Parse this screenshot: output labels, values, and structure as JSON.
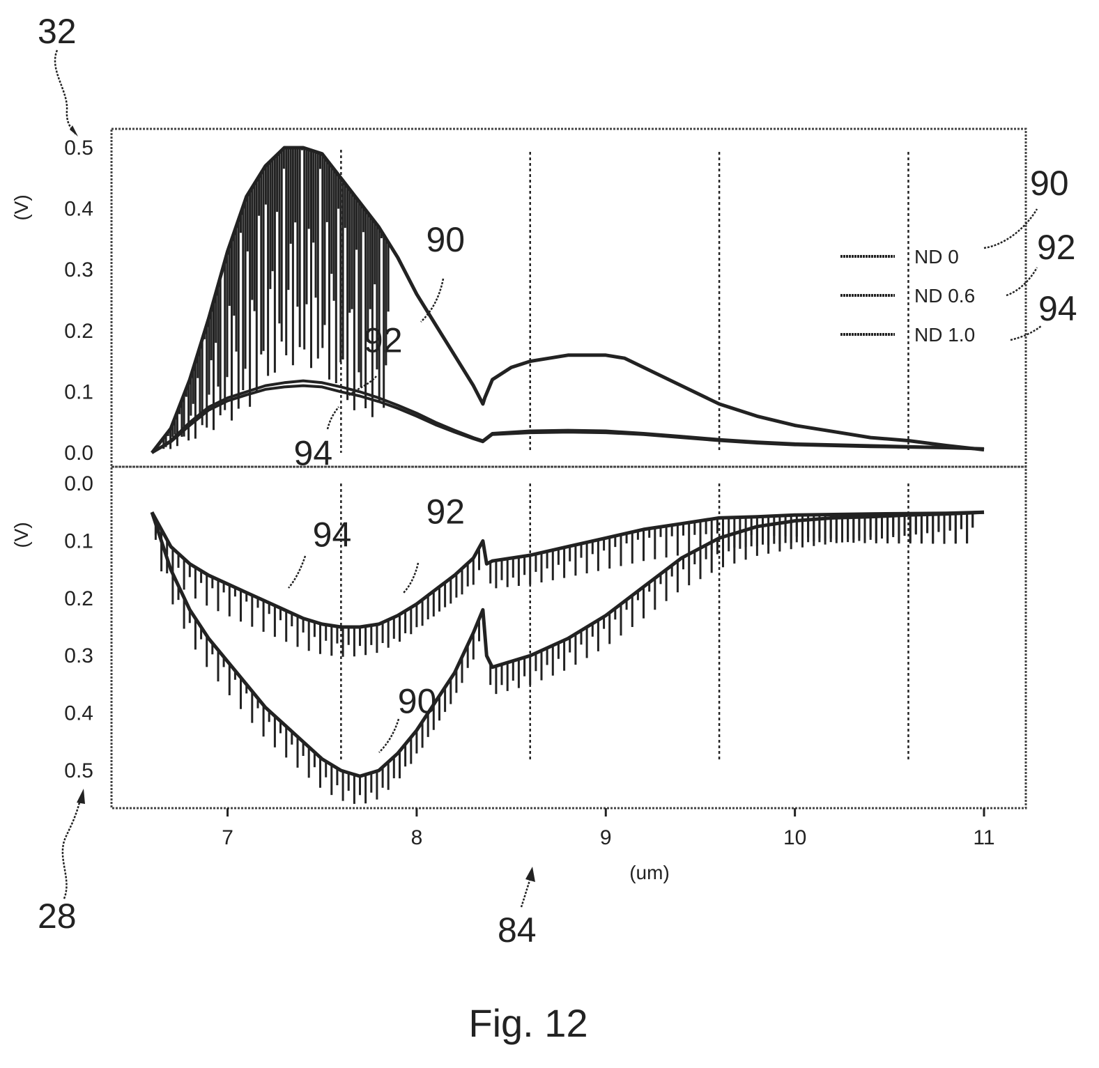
{
  "figure": {
    "caption": "Fig. 12",
    "ref_top_panel": "32",
    "ref_bottom_panel": "28",
    "ref_x_axis": "84"
  },
  "colors": {
    "ink": "#222222",
    "background": "#ffffff"
  },
  "chart_data": [
    {
      "type": "line",
      "panel": "top",
      "xlabel": "(um)",
      "ylabel": "(V)",
      "xlim": [
        6.6,
        11.0
      ],
      "ylim": [
        0.0,
        0.5
      ],
      "grid": false,
      "vertical_dashed_lines": [
        7.6,
        8.6,
        9.6,
        10.6
      ],
      "x_ticks": [
        "7",
        "8",
        "9",
        "10",
        "11"
      ],
      "y_ticks": [
        "0.0",
        "0.1",
        "0.2",
        "0.3",
        "0.4",
        "0.5"
      ],
      "legend": {
        "position": "right",
        "entries": [
          "ND 0",
          "ND 0.6",
          "ND 1.0"
        ],
        "refs": [
          "90",
          "92",
          "94"
        ]
      },
      "series": [
        {
          "name": "ND 0",
          "ref": "90",
          "x": [
            6.6,
            6.7,
            6.8,
            6.9,
            7.0,
            7.1,
            7.2,
            7.3,
            7.4,
            7.5,
            7.6,
            7.7,
            7.8,
            7.9,
            8.0,
            8.1,
            8.2,
            8.3,
            8.35,
            8.36,
            8.4,
            8.5,
            8.6,
            8.7,
            8.8,
            8.9,
            9.0,
            9.1,
            9.2,
            9.4,
            9.6,
            9.8,
            10.0,
            10.2,
            10.4,
            10.6,
            10.8,
            11.0
          ],
          "y": [
            0.0,
            0.04,
            0.12,
            0.22,
            0.33,
            0.42,
            0.47,
            0.5,
            0.5,
            0.49,
            0.45,
            0.41,
            0.37,
            0.32,
            0.26,
            0.21,
            0.16,
            0.11,
            0.08,
            0.09,
            0.12,
            0.14,
            0.15,
            0.155,
            0.16,
            0.16,
            0.16,
            0.155,
            0.14,
            0.11,
            0.08,
            0.06,
            0.045,
            0.035,
            0.025,
            0.02,
            0.012,
            0.005
          ]
        },
        {
          "name": "ND 0.6",
          "ref": "92",
          "x": [
            6.6,
            6.7,
            6.8,
            6.9,
            7.0,
            7.1,
            7.2,
            7.3,
            7.4,
            7.5,
            7.6,
            7.7,
            7.8,
            7.9,
            8.0,
            8.1,
            8.2,
            8.3,
            8.35,
            8.4,
            8.6,
            8.8,
            9.0,
            9.2,
            9.4,
            9.6,
            9.8,
            10.0,
            10.4,
            10.8,
            11.0
          ],
          "y": [
            0.0,
            0.02,
            0.05,
            0.075,
            0.09,
            0.1,
            0.11,
            0.115,
            0.118,
            0.115,
            0.108,
            0.1,
            0.09,
            0.078,
            0.065,
            0.05,
            0.037,
            0.025,
            0.02,
            0.032,
            0.036,
            0.037,
            0.036,
            0.032,
            0.027,
            0.022,
            0.018,
            0.015,
            0.012,
            0.009,
            0.007
          ]
        },
        {
          "name": "ND 1.0",
          "ref": "94",
          "x": [
            6.6,
            6.7,
            6.8,
            6.9,
            7.0,
            7.1,
            7.2,
            7.3,
            7.4,
            7.5,
            7.6,
            7.7,
            7.8,
            7.9,
            8.0,
            8.1,
            8.2,
            8.3,
            8.35,
            8.4,
            8.6,
            8.8,
            9.0,
            9.2,
            9.4,
            9.6,
            9.8,
            10.0,
            10.4,
            10.8,
            11.0
          ],
          "y": [
            0.0,
            0.018,
            0.045,
            0.07,
            0.085,
            0.095,
            0.104,
            0.108,
            0.11,
            0.108,
            0.1,
            0.093,
            0.084,
            0.073,
            0.06,
            0.046,
            0.034,
            0.023,
            0.018,
            0.03,
            0.033,
            0.034,
            0.033,
            0.03,
            0.025,
            0.02,
            0.016,
            0.013,
            0.01,
            0.008,
            0.006
          ]
        }
      ],
      "annotations": [
        {
          "text": "90",
          "x": 8.05,
          "y": 0.33
        },
        {
          "text": "92",
          "x": 7.72,
          "y": 0.165
        },
        {
          "text": "94",
          "x": 7.35,
          "y": -0.02
        }
      ]
    },
    {
      "type": "line",
      "panel": "bottom",
      "xlabel": "(um)",
      "ylabel": "(V)",
      "xlim": [
        6.6,
        11.0
      ],
      "ylim": [
        0.0,
        0.5
      ],
      "y_inverted": true,
      "grid": false,
      "vertical_dashed_lines": [
        7.6,
        8.6,
        9.6,
        10.6
      ],
      "x_ticks": [
        "7",
        "8",
        "9",
        "10",
        "11"
      ],
      "y_ticks": [
        "0.0",
        "0.1",
        "0.2",
        "0.3",
        "0.4",
        "0.5"
      ],
      "series": [
        {
          "name": "ND 0",
          "ref": "90",
          "x": [
            6.6,
            6.7,
            6.8,
            6.9,
            7.0,
            7.1,
            7.2,
            7.3,
            7.4,
            7.5,
            7.6,
            7.7,
            7.8,
            7.9,
            8.0,
            8.1,
            8.2,
            8.3,
            8.35,
            8.37,
            8.4,
            8.5,
            8.6,
            8.8,
            9.0,
            9.2,
            9.4,
            9.6,
            9.8,
            10.0,
            10.2,
            10.4,
            10.6,
            10.8,
            11.0
          ],
          "y": [
            0.05,
            0.15,
            0.22,
            0.27,
            0.31,
            0.35,
            0.39,
            0.42,
            0.45,
            0.48,
            0.5,
            0.51,
            0.5,
            0.47,
            0.43,
            0.38,
            0.33,
            0.26,
            0.22,
            0.3,
            0.32,
            0.31,
            0.3,
            0.27,
            0.23,
            0.18,
            0.13,
            0.095,
            0.075,
            0.065,
            0.06,
            0.058,
            0.055,
            0.053,
            0.05
          ]
        },
        {
          "name": "ND 0.6",
          "ref": "92",
          "x": [
            6.6,
            6.7,
            6.8,
            6.9,
            7.0,
            7.1,
            7.2,
            7.3,
            7.4,
            7.5,
            7.6,
            7.7,
            7.8,
            7.9,
            8.0,
            8.1,
            8.2,
            8.3,
            8.35,
            8.37,
            8.4,
            8.6,
            8.8,
            9.0,
            9.2,
            9.4,
            9.6,
            9.8,
            10.0,
            10.4,
            10.8,
            11.0
          ],
          "y": [
            0.05,
            0.11,
            0.14,
            0.16,
            0.175,
            0.19,
            0.205,
            0.22,
            0.235,
            0.245,
            0.25,
            0.25,
            0.245,
            0.23,
            0.21,
            0.185,
            0.16,
            0.13,
            0.1,
            0.14,
            0.135,
            0.125,
            0.11,
            0.095,
            0.08,
            0.07,
            0.06,
            0.058,
            0.055,
            0.053,
            0.052,
            0.05
          ]
        }
      ],
      "annotations": [
        {
          "text": "94",
          "x": 7.45,
          "y": 0.11
        },
        {
          "text": "92",
          "x": 8.05,
          "y": 0.07
        },
        {
          "text": "90",
          "x": 7.9,
          "y": 0.4
        }
      ]
    }
  ]
}
